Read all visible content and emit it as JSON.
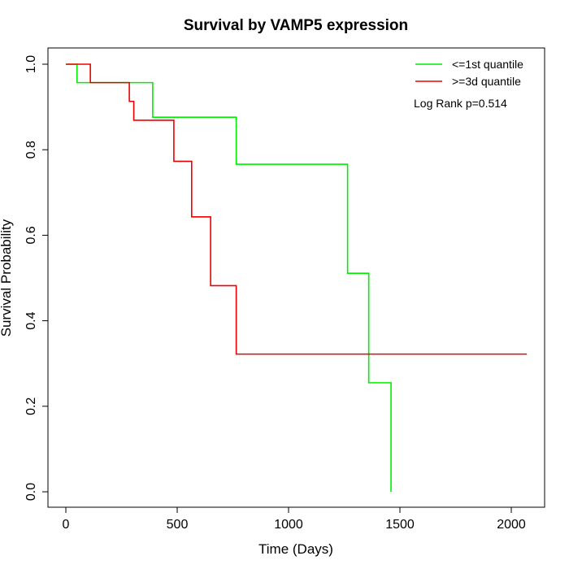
{
  "chart_data": {
    "type": "line",
    "step": true,
    "title": "Survival by VAMP5 expression",
    "xlabel": "Time (Days)",
    "ylabel": "Survival Probability",
    "xlim": [
      0,
      2070
    ],
    "ylim": [
      0,
      1
    ],
    "x_ticks": [
      0,
      500,
      1000,
      1500,
      2000
    ],
    "y_ticks": [
      0.0,
      0.2,
      0.4,
      0.6,
      0.8,
      1.0
    ],
    "x_tick_labels": [
      "0",
      "500",
      "1000",
      "1500",
      "2000"
    ],
    "y_tick_labels": [
      "0.0",
      "0.2",
      "0.4",
      "0.6",
      "0.8",
      "1.0"
    ],
    "grid": false,
    "legend_position": "top-right",
    "annotation": "Log Rank p=0.514",
    "series": [
      {
        "name": "<=1st quantile",
        "color": "#00ee00",
        "x": [
          0,
          50,
          390,
          765,
          1265,
          1360,
          1460,
          1460
        ],
        "y": [
          1.0,
          0.957,
          0.876,
          0.766,
          0.511,
          0.255,
          0.255,
          0.0
        ]
      },
      {
        "name": ">=3d quantile",
        "color": "#ee0000",
        "x": [
          0,
          110,
          285,
          305,
          485,
          565,
          650,
          765,
          2070
        ],
        "y": [
          1.0,
          0.957,
          0.913,
          0.869,
          0.773,
          0.643,
          0.482,
          0.322,
          0.322
        ]
      }
    ]
  }
}
